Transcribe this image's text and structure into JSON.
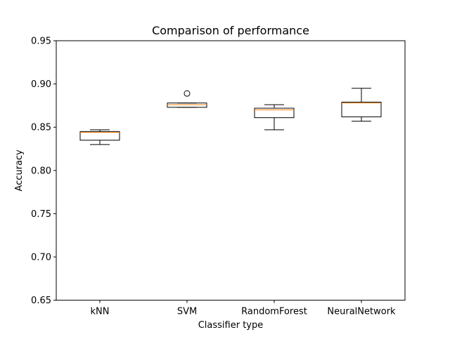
{
  "chart_data": {
    "type": "box",
    "title": "Comparison of performance",
    "xlabel": "Classifier type",
    "ylabel": "Accuracy",
    "ylim": [
      0.65,
      0.95
    ],
    "yticks": [
      "0.65",
      "0.70",
      "0.75",
      "0.80",
      "0.85",
      "0.90",
      "0.95"
    ],
    "grid": false,
    "categories": [
      "kNN",
      "SVM",
      "RandomForest",
      "NeuralNetwork"
    ],
    "boxes": [
      {
        "category": "kNN",
        "whisker_low": 0.83,
        "q1": 0.835,
        "median": 0.844,
        "q3": 0.845,
        "whisker_high": 0.847,
        "outliers": []
      },
      {
        "category": "SVM",
        "whisker_low": 0.873,
        "q1": 0.873,
        "median": 0.876,
        "q3": 0.878,
        "whisker_high": 0.878,
        "outliers": [
          0.889
        ]
      },
      {
        "category": "RandomForest",
        "whisker_low": 0.847,
        "q1": 0.861,
        "median": 0.87,
        "q3": 0.872,
        "whisker_high": 0.876,
        "outliers": []
      },
      {
        "category": "NeuralNetwork",
        "whisker_low": 0.857,
        "q1": 0.862,
        "median": 0.878,
        "q3": 0.879,
        "whisker_high": 0.895,
        "outliers": []
      }
    ],
    "colors": {
      "box": "#000000",
      "median": "#ff7f0e",
      "outlier": "#000000"
    }
  }
}
